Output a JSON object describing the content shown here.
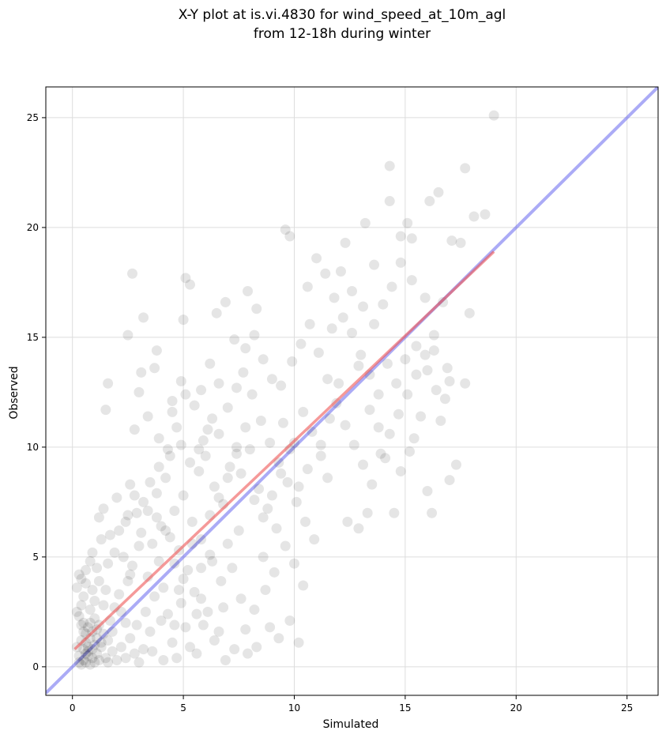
{
  "chart_data": {
    "type": "scatter",
    "title_line1": "X-Y plot at is.vi.4830 for wind_speed_at_10m_agl",
    "title_line2": "from 12-18h during winter",
    "xlabel": "Simulated",
    "ylabel": "Observed",
    "xlim": [
      -1.2,
      26.4
    ],
    "ylim": [
      -1.3,
      26.4
    ],
    "xticks": [
      0,
      5,
      10,
      15,
      20,
      25
    ],
    "yticks": [
      0,
      5,
      10,
      15,
      20,
      25
    ],
    "grid": true,
    "reference_line": {
      "from": [
        -1.2,
        -1.2
      ],
      "to": [
        26.4,
        26.4
      ],
      "color": "#6666ee"
    },
    "fit_line": {
      "from": [
        0.1,
        0.8
      ],
      "to": [
        19.0,
        18.9
      ],
      "color": "#ee5555"
    },
    "point_color": "#000000",
    "points": [
      [
        0.4,
        0.1
      ],
      [
        0.5,
        0.3
      ],
      [
        0.6,
        0.2
      ],
      [
        0.7,
        0.5
      ],
      [
        0.8,
        0.1
      ],
      [
        0.9,
        0.4
      ],
      [
        1.0,
        0.2
      ],
      [
        0.5,
        0.8
      ],
      [
        0.6,
        1.1
      ],
      [
        0.7,
        0.9
      ],
      [
        0.8,
        1.3
      ],
      [
        0.9,
        1.6
      ],
      [
        1.0,
        1.0
      ],
      [
        1.1,
        0.6
      ],
      [
        1.2,
        0.3
      ],
      [
        0.3,
        0.5
      ],
      [
        0.4,
        1.2
      ],
      [
        0.6,
        1.5
      ],
      [
        0.7,
        1.8
      ],
      [
        0.5,
        2.0
      ],
      [
        0.3,
        2.3
      ],
      [
        0.4,
        2.8
      ],
      [
        0.5,
        3.2
      ],
      [
        0.6,
        3.8
      ],
      [
        0.3,
        4.2
      ],
      [
        0.2,
        3.6
      ],
      [
        0.8,
        2.6
      ],
      [
        1.0,
        2.2
      ],
      [
        1.2,
        1.9
      ],
      [
        1.4,
        1.5
      ],
      [
        1.3,
        0.9
      ],
      [
        1.5,
        0.4
      ],
      [
        1.6,
        1.2
      ],
      [
        1.8,
        0.7
      ],
      [
        2.0,
        0.3
      ],
      [
        2.2,
        0.9
      ],
      [
        1.7,
        2.1
      ],
      [
        1.9,
        2.7
      ],
      [
        2.1,
        3.3
      ],
      [
        2.4,
        2.0
      ],
      [
        2.6,
        1.3
      ],
      [
        2.8,
        0.6
      ],
      [
        3.0,
        0.2
      ],
      [
        3.2,
        0.8
      ],
      [
        2.5,
        3.9
      ],
      [
        2.7,
        4.6
      ],
      [
        1.5,
        3.5
      ],
      [
        1.1,
        4.5
      ],
      [
        0.9,
        5.2
      ],
      [
        1.3,
        5.8
      ],
      [
        0.8,
        4.8
      ],
      [
        1.0,
        3.0
      ],
      [
        2.3,
        5.0
      ],
      [
        3.3,
        2.5
      ],
      [
        3.5,
        1.6
      ],
      [
        3.7,
        3.2
      ],
      [
        3.4,
        4.1
      ],
      [
        3.9,
        4.8
      ],
      [
        4.1,
        3.6
      ],
      [
        4.3,
        2.4
      ],
      [
        4.5,
        1.1
      ],
      [
        4.7,
        0.4
      ],
      [
        4.9,
        2.9
      ],
      [
        5.1,
        1.8
      ],
      [
        5.3,
        0.9
      ],
      [
        5.5,
        3.4
      ],
      [
        5.2,
        4.4
      ],
      [
        4.8,
        5.3
      ],
      [
        4.4,
        5.9
      ],
      [
        4.0,
        6.4
      ],
      [
        3.6,
        5.6
      ],
      [
        3.1,
        6.1
      ],
      [
        2.9,
        7.0
      ],
      [
        2.4,
        6.6
      ],
      [
        2.0,
        7.7
      ],
      [
        1.7,
        6.0
      ],
      [
        1.4,
        7.2
      ],
      [
        1.2,
        6.8
      ],
      [
        2.6,
        8.3
      ],
      [
        3.2,
        7.5
      ],
      [
        3.8,
        7.9
      ],
      [
        4.2,
        8.6
      ],
      [
        4.6,
        7.1
      ],
      [
        5.0,
        7.8
      ],
      [
        5.4,
        6.6
      ],
      [
        5.8,
        5.8
      ],
      [
        6.2,
        6.9
      ],
      [
        5.7,
        8.9
      ],
      [
        6.0,
        9.6
      ],
      [
        6.4,
        8.2
      ],
      [
        6.8,
        7.4
      ],
      [
        7.1,
        9.1
      ],
      [
        7.4,
        10.0
      ],
      [
        6.6,
        10.6
      ],
      [
        6.3,
        11.3
      ],
      [
        5.9,
        10.3
      ],
      [
        5.5,
        11.9
      ],
      [
        5.1,
        12.4
      ],
      [
        4.7,
        10.9
      ],
      [
        4.3,
        9.9
      ],
      [
        3.9,
        10.4
      ],
      [
        3.4,
        11.4
      ],
      [
        3.0,
        12.5
      ],
      [
        2.8,
        10.8
      ],
      [
        3.1,
        13.4
      ],
      [
        2.7,
        17.9
      ],
      [
        3.2,
        15.9
      ],
      [
        2.5,
        15.1
      ],
      [
        1.5,
        11.7
      ],
      [
        1.6,
        12.9
      ],
      [
        3.8,
        14.4
      ],
      [
        3.7,
        13.6
      ],
      [
        4.5,
        12.1
      ],
      [
        5.0,
        15.8
      ],
      [
        5.1,
        17.7
      ],
      [
        5.3,
        17.4
      ],
      [
        6.5,
        16.1
      ],
      [
        6.9,
        16.6
      ],
      [
        7.3,
        14.9
      ],
      [
        7.9,
        17.1
      ],
      [
        8.3,
        16.3
      ],
      [
        7.7,
        13.4
      ],
      [
        8.1,
        12.4
      ],
      [
        8.5,
        11.2
      ],
      [
        8.9,
        10.2
      ],
      [
        9.3,
        9.3
      ],
      [
        9.7,
        8.4
      ],
      [
        10.1,
        7.5
      ],
      [
        10.5,
        6.6
      ],
      [
        10.9,
        5.8
      ],
      [
        7.6,
        8.8
      ],
      [
        8.0,
        9.9
      ],
      [
        8.4,
        8.1
      ],
      [
        8.8,
        7.2
      ],
      [
        9.2,
        6.3
      ],
      [
        9.6,
        5.5
      ],
      [
        10.0,
        4.7
      ],
      [
        10.4,
        3.7
      ],
      [
        9.1,
        4.3
      ],
      [
        8.7,
        3.5
      ],
      [
        8.2,
        2.6
      ],
      [
        7.8,
        1.7
      ],
      [
        7.3,
        0.8
      ],
      [
        6.9,
        0.3
      ],
      [
        6.6,
        1.6
      ],
      [
        6.1,
        2.5
      ],
      [
        5.8,
        3.1
      ],
      [
        6.7,
        3.9
      ],
      [
        7.2,
        4.5
      ],
      [
        7.0,
        5.6
      ],
      [
        7.5,
        6.2
      ],
      [
        8.6,
        5.0
      ],
      [
        9.4,
        12.8
      ],
      [
        9.9,
        13.9
      ],
      [
        10.3,
        14.7
      ],
      [
        10.7,
        15.6
      ],
      [
        11.1,
        14.3
      ],
      [
        11.5,
        13.1
      ],
      [
        11.9,
        12.0
      ],
      [
        12.3,
        11.0
      ],
      [
        12.7,
        10.1
      ],
      [
        13.1,
        9.2
      ],
      [
        13.5,
        8.3
      ],
      [
        13.9,
        9.7
      ],
      [
        14.3,
        10.6
      ],
      [
        14.7,
        11.5
      ],
      [
        15.1,
        12.4
      ],
      [
        15.5,
        13.3
      ],
      [
        15.9,
        14.2
      ],
      [
        16.3,
        15.1
      ],
      [
        10.6,
        17.3
      ],
      [
        11.0,
        18.6
      ],
      [
        11.4,
        17.9
      ],
      [
        11.8,
        16.8
      ],
      [
        12.2,
        15.9
      ],
      [
        12.6,
        15.2
      ],
      [
        13.0,
        14.2
      ],
      [
        13.4,
        13.3
      ],
      [
        13.8,
        12.4
      ],
      [
        14.2,
        13.8
      ],
      [
        9.6,
        19.9
      ],
      [
        9.8,
        19.6
      ],
      [
        12.3,
        19.3
      ],
      [
        13.2,
        20.2
      ],
      [
        13.6,
        18.3
      ],
      [
        14.3,
        21.2
      ],
      [
        14.3,
        22.8
      ],
      [
        14.8,
        19.6
      ],
      [
        15.1,
        20.2
      ],
      [
        15.3,
        19.5
      ],
      [
        16.1,
        21.2
      ],
      [
        16.5,
        21.6
      ],
      [
        17.1,
        19.4
      ],
      [
        17.5,
        19.3
      ],
      [
        17.7,
        22.7
      ],
      [
        18.1,
        20.5
      ],
      [
        18.6,
        20.6
      ],
      [
        19.0,
        25.1
      ],
      [
        17.9,
        16.1
      ],
      [
        17.7,
        12.9
      ],
      [
        17.0,
        13.0
      ],
      [
        16.8,
        12.2
      ],
      [
        16.3,
        14.4
      ],
      [
        15.7,
        11.4
      ],
      [
        15.2,
        9.8
      ],
      [
        14.8,
        8.9
      ],
      [
        14.5,
        7.0
      ],
      [
        16.0,
        8.0
      ],
      [
        16.2,
        7.0
      ],
      [
        17.0,
        8.5
      ],
      [
        17.3,
        9.2
      ],
      [
        16.6,
        11.2
      ],
      [
        15.4,
        10.4
      ],
      [
        14.1,
        9.5
      ],
      [
        13.3,
        7.0
      ],
      [
        12.4,
        6.6
      ],
      [
        12.9,
        6.3
      ],
      [
        11.5,
        8.6
      ],
      [
        11.2,
        9.6
      ],
      [
        10.8,
        10.7
      ],
      [
        10.4,
        11.6
      ],
      [
        10.0,
        10.2
      ],
      [
        9.5,
        11.1
      ],
      [
        9.0,
        13.1
      ],
      [
        8.6,
        14.0
      ],
      [
        8.2,
        15.1
      ],
      [
        7.8,
        14.5
      ],
      [
        7.4,
        12.7
      ],
      [
        7.0,
        11.8
      ],
      [
        6.6,
        12.9
      ],
      [
        6.2,
        13.8
      ],
      [
        5.8,
        12.6
      ],
      [
        4.9,
        13.0
      ],
      [
        4.5,
        11.6
      ],
      [
        10.2,
        1.1
      ],
      [
        9.8,
        2.1
      ],
      [
        9.3,
        1.3
      ],
      [
        8.9,
        1.8
      ],
      [
        8.3,
        0.9
      ],
      [
        7.9,
        0.6
      ],
      [
        12.0,
        12.9
      ],
      [
        11.6,
        11.3
      ],
      [
        11.2,
        10.1
      ],
      [
        10.6,
        9.0
      ],
      [
        10.2,
        8.2
      ],
      [
        9.8,
        9.9
      ],
      [
        9.4,
        8.8
      ],
      [
        9.0,
        7.8
      ],
      [
        8.6,
        6.8
      ],
      [
        8.2,
        7.6
      ],
      [
        7.8,
        10.9
      ],
      [
        7.4,
        9.7
      ],
      [
        7.0,
        8.6
      ],
      [
        6.6,
        7.7
      ],
      [
        6.2,
        5.1
      ],
      [
        5.8,
        4.5
      ],
      [
        5.4,
        5.6
      ],
      [
        5.0,
        4.0
      ],
      [
        4.6,
        4.7
      ],
      [
        4.2,
        6.2
      ],
      [
        3.8,
        6.8
      ],
      [
        3.4,
        7.1
      ],
      [
        3.0,
        5.5
      ],
      [
        2.6,
        4.2
      ],
      [
        2.2,
        2.5
      ],
      [
        1.8,
        1.6
      ],
      [
        1.4,
        2.8
      ],
      [
        1.1,
        1.3
      ],
      [
        0.7,
        0.7
      ],
      [
        0.5,
        1.6
      ],
      [
        13.6,
        15.6
      ],
      [
        14.0,
        16.5
      ],
      [
        14.4,
        17.3
      ],
      [
        14.8,
        18.4
      ],
      [
        15.3,
        17.6
      ],
      [
        15.9,
        16.8
      ],
      [
        16.7,
        16.6
      ],
      [
        13.1,
        16.4
      ],
      [
        12.6,
        17.1
      ],
      [
        12.1,
        18.0
      ],
      [
        11.7,
        15.4
      ],
      [
        12.9,
        13.7
      ],
      [
        13.4,
        11.7
      ],
      [
        13.8,
        10.9
      ],
      [
        14.6,
        12.9
      ],
      [
        15.0,
        14.0
      ],
      [
        15.5,
        14.6
      ],
      [
        16.0,
        13.5
      ],
      [
        16.4,
        12.6
      ],
      [
        16.9,
        13.6
      ],
      [
        0.9,
        0.8
      ],
      [
        1.1,
        1.7
      ],
      [
        0.6,
        0.6
      ],
      [
        0.8,
        2.0
      ],
      [
        1.3,
        1.1
      ],
      [
        1.6,
        0.2
      ],
      [
        2.4,
        0.4
      ],
      [
        2.9,
        1.9
      ],
      [
        3.6,
        0.7
      ],
      [
        4.1,
        0.3
      ],
      [
        4.6,
        1.9
      ],
      [
        5.6,
        0.6
      ],
      [
        6.4,
        1.2
      ],
      [
        5.9,
        1.9
      ],
      [
        6.8,
        2.7
      ],
      [
        7.6,
        3.1
      ],
      [
        6.3,
        4.8
      ],
      [
        5.6,
        2.4
      ],
      [
        4.8,
        3.5
      ],
      [
        4.0,
        2.1
      ],
      [
        0.2,
        0.9
      ],
      [
        0.3,
        0.2
      ],
      [
        0.4,
        1.9
      ],
      [
        0.2,
        2.5
      ],
      [
        0.9,
        3.5
      ],
      [
        1.2,
        3.9
      ],
      [
        0.6,
        4.4
      ],
      [
        0.4,
        4.0
      ],
      [
        1.6,
        4.7
      ],
      [
        1.9,
        5.2
      ],
      [
        2.1,
        6.2
      ],
      [
        2.5,
        6.9
      ],
      [
        2.8,
        7.8
      ],
      [
        3.5,
        8.4
      ],
      [
        3.9,
        9.1
      ],
      [
        4.4,
        9.6
      ],
      [
        4.9,
        10.1
      ],
      [
        5.3,
        9.3
      ],
      [
        5.7,
        9.9
      ],
      [
        6.1,
        10.8
      ]
    ]
  }
}
